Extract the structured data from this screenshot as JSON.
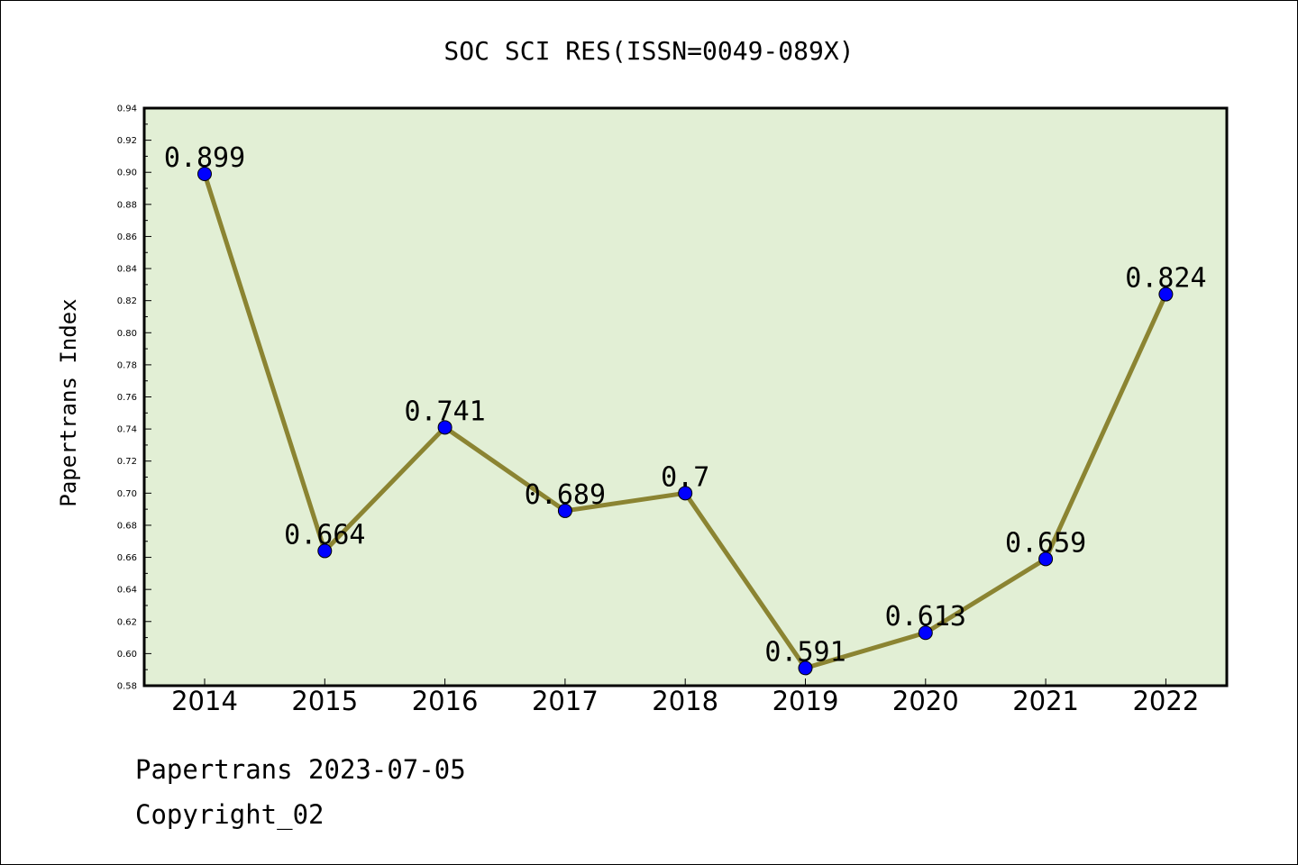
{
  "chart_data": {
    "type": "line",
    "title": "SOC SCI RES(ISSN=0049-089X)",
    "xlabel": "",
    "ylabel": "Papertrans Index",
    "categories": [
      "2014",
      "2015",
      "2016",
      "2017",
      "2018",
      "2019",
      "2020",
      "2021",
      "2022"
    ],
    "values": [
      0.899,
      0.664,
      0.741,
      0.689,
      0.7,
      0.591,
      0.613,
      0.659,
      0.824
    ],
    "data_labels": [
      "0.899",
      "0.664",
      "0.741",
      "0.689",
      "0.7",
      "0.591",
      "0.613",
      "0.659",
      "0.824"
    ],
    "ylim": [
      0.58,
      0.94
    ],
    "yticks": [
      "0.58",
      "0.60",
      "0.62",
      "0.64",
      "0.66",
      "0.68",
      "0.70",
      "0.72",
      "0.74",
      "0.76",
      "0.78",
      "0.80",
      "0.82",
      "0.84",
      "0.86",
      "0.88",
      "0.90",
      "0.92",
      "0.94"
    ],
    "grid": false,
    "colors": {
      "plot_background": "#e2efd5",
      "line": "#8b8432",
      "marker": "#0000ff"
    }
  },
  "footer": {
    "line1": "Papertrans 2023-07-05",
    "line2": "Copyright_02"
  }
}
